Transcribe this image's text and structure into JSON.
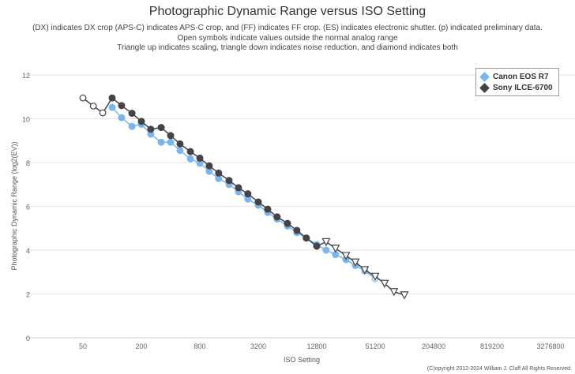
{
  "chart_data": {
    "type": "line",
    "title": "Photographic Dynamic Range versus ISO Setting",
    "subtitle": [
      "(DX) indicates DX crop (APS-C) indicates APS-C crop, and (FF) indicates FF crop. (ES) indicates electronic shutter. (p) indicated preliminary data.",
      "Open symbols indicate values outside the normal analog range",
      "Triangle up indicates scaling, triangle down indicates noise reduction, and diamond indicates both"
    ],
    "xlabel": "ISO Setting",
    "ylabel": "Photographic Dynamic Range (log2(EV))",
    "x_scale": "log2",
    "xlim": [
      25,
      3276800
    ],
    "ylim": [
      0,
      12
    ],
    "xticks": [
      "50",
      "200",
      "800",
      "3200",
      "12800",
      "51200",
      "204800",
      "819200",
      "3276800"
    ],
    "yticks": [
      "0",
      "2",
      "4",
      "6",
      "8",
      "10",
      "12"
    ],
    "grid": true,
    "legend_position": "top-right",
    "copyright": "(C)opyright 2012-2024 William J. Claff All Rights Reserved.",
    "series": [
      {
        "name": "Canon EOS R7",
        "color": "#7cb5ec",
        "points": [
          [
            100,
            10.52,
            "filled"
          ],
          [
            125,
            10.05,
            "filled"
          ],
          [
            160,
            9.65,
            "filled"
          ],
          [
            200,
            9.75,
            "filled"
          ],
          [
            250,
            9.3,
            "filled"
          ],
          [
            320,
            8.93,
            "filled"
          ],
          [
            400,
            8.93,
            "filled"
          ],
          [
            500,
            8.55,
            "filled"
          ],
          [
            640,
            8.17,
            "filled"
          ],
          [
            800,
            7.97,
            "filled"
          ],
          [
            1000,
            7.6,
            "filled"
          ],
          [
            1250,
            7.27,
            "filled"
          ],
          [
            1600,
            7.0,
            "filled"
          ],
          [
            2000,
            6.67,
            "filled"
          ],
          [
            2500,
            6.33,
            "filled"
          ],
          [
            3200,
            6.05,
            "filled"
          ],
          [
            4000,
            5.72,
            "filled"
          ],
          [
            5000,
            5.42,
            "filled"
          ],
          [
            6400,
            5.1,
            "filled"
          ],
          [
            8000,
            4.8,
            "filled"
          ],
          [
            10000,
            4.55,
            "filled"
          ],
          [
            12800,
            4.25,
            "filled"
          ],
          [
            16000,
            4.0,
            "filled"
          ],
          [
            20000,
            3.8,
            "filled"
          ],
          [
            25600,
            3.57,
            "filled"
          ],
          [
            32000,
            3.3,
            "filled"
          ],
          [
            40000,
            3.05,
            "filled"
          ],
          [
            51200,
            2.7,
            "open"
          ]
        ]
      },
      {
        "name": "Sony ILCE-6700",
        "color": "#434348",
        "points": [
          [
            50,
            10.95,
            "open"
          ],
          [
            64,
            10.58,
            "open"
          ],
          [
            80,
            10.27,
            "open"
          ],
          [
            100,
            10.95,
            "filled"
          ],
          [
            125,
            10.6,
            "filled"
          ],
          [
            160,
            10.25,
            "filled"
          ],
          [
            200,
            9.88,
            "filled"
          ],
          [
            250,
            9.52,
            "filled"
          ],
          [
            320,
            9.6,
            "filled"
          ],
          [
            400,
            9.23,
            "filled"
          ],
          [
            500,
            8.85,
            "filled"
          ],
          [
            640,
            8.5,
            "filled"
          ],
          [
            800,
            8.2,
            "filled"
          ],
          [
            1000,
            7.85,
            "filled"
          ],
          [
            1250,
            7.52,
            "filled"
          ],
          [
            1600,
            7.18,
            "filled"
          ],
          [
            2000,
            6.85,
            "filled"
          ],
          [
            2500,
            6.57,
            "filled"
          ],
          [
            3200,
            6.2,
            "filled"
          ],
          [
            4000,
            5.87,
            "filled"
          ],
          [
            5000,
            5.52,
            "filled"
          ],
          [
            6400,
            5.22,
            "filled"
          ],
          [
            8000,
            4.9,
            "filled"
          ],
          [
            10000,
            4.55,
            "filled"
          ],
          [
            12800,
            4.18,
            "filled"
          ],
          [
            16000,
            4.38,
            "triangle-down"
          ],
          [
            20000,
            4.08,
            "triangle-down"
          ],
          [
            25600,
            3.75,
            "triangle-down"
          ],
          [
            32000,
            3.45,
            "triangle-down"
          ],
          [
            40000,
            3.1,
            "triangle-down"
          ],
          [
            51200,
            2.8,
            "triangle-down"
          ],
          [
            64000,
            2.48,
            "triangle-down"
          ],
          [
            80000,
            2.1,
            "triangle-down"
          ],
          [
            102400,
            1.95,
            "triangle-down"
          ]
        ]
      }
    ]
  }
}
